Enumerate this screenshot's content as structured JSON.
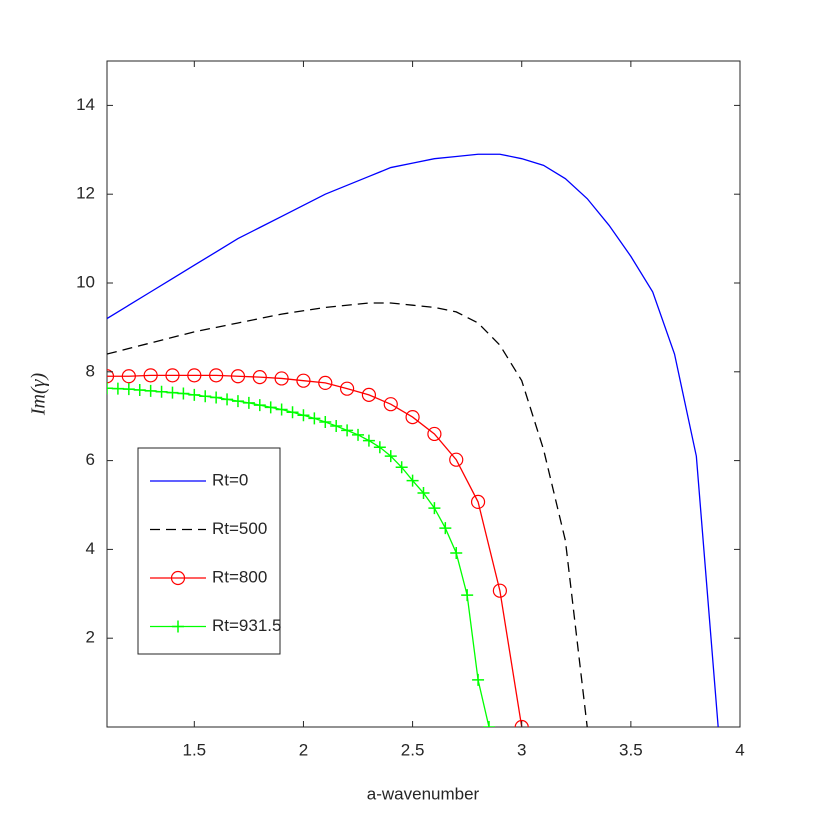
{
  "chart_data": {
    "type": "line",
    "xlabel": "a-wavenumber",
    "ylabel": "Im(γ)",
    "xlim": [
      1.1,
      4
    ],
    "ylim": [
      0,
      15
    ],
    "xticks": [
      1.5,
      2,
      2.5,
      3,
      3.5,
      4
    ],
    "yticks": [
      2,
      4,
      6,
      8,
      10,
      12,
      14
    ],
    "grid": false,
    "legend": "lower left",
    "series": [
      {
        "name": "Rt=0",
        "color": "#0000ff",
        "dash": false,
        "marker": "none",
        "x": [
          1.1,
          1.2,
          1.3,
          1.4,
          1.5,
          1.6,
          1.7,
          1.8,
          1.9,
          2.0,
          2.1,
          2.2,
          2.3,
          2.4,
          2.5,
          2.6,
          2.7,
          2.8,
          2.9,
          3.0,
          3.1,
          3.2,
          3.3,
          3.4,
          3.5,
          3.6,
          3.7,
          3.8,
          3.9
        ],
        "values": [
          9.2,
          9.5,
          9.8,
          10.1,
          10.4,
          10.7,
          11.0,
          11.25,
          11.5,
          11.75,
          12.0,
          12.2,
          12.4,
          12.6,
          12.7,
          12.8,
          12.85,
          12.9,
          12.9,
          12.8,
          12.65,
          12.35,
          11.9,
          11.3,
          10.6,
          9.8,
          8.4,
          6.1,
          0
        ]
      },
      {
        "name": "Rt=500",
        "color": "#000000",
        "dash": true,
        "marker": "none",
        "x": [
          1.1,
          1.3,
          1.5,
          1.7,
          1.9,
          2.1,
          2.3,
          2.4,
          2.5,
          2.6,
          2.7,
          2.8,
          2.9,
          3.0,
          3.1,
          3.2,
          3.3
        ],
        "values": [
          8.4,
          8.65,
          8.9,
          9.1,
          9.3,
          9.45,
          9.55,
          9.55,
          9.5,
          9.45,
          9.35,
          9.1,
          8.6,
          7.8,
          6.25,
          4.2,
          0
        ]
      },
      {
        "name": "Rt=800",
        "color": "#ff0000",
        "dash": false,
        "marker": "o",
        "x": [
          1.1,
          1.2,
          1.3,
          1.4,
          1.5,
          1.6,
          1.7,
          1.8,
          1.9,
          2.0,
          2.1,
          2.2,
          2.3,
          2.4,
          2.5,
          2.6,
          2.7,
          2.8,
          2.9,
          3.0
        ],
        "values": [
          7.9,
          7.9,
          7.92,
          7.92,
          7.92,
          7.92,
          7.9,
          7.88,
          7.85,
          7.8,
          7.75,
          7.62,
          7.48,
          7.27,
          6.98,
          6.6,
          6.02,
          5.07,
          3.07,
          0
        ]
      },
      {
        "name": "Rt=931.5",
        "color": "#00ff00",
        "dash": false,
        "marker": "+",
        "x": [
          1.1,
          1.15,
          1.2,
          1.25,
          1.3,
          1.35,
          1.4,
          1.45,
          1.5,
          1.55,
          1.6,
          1.65,
          1.7,
          1.75,
          1.8,
          1.85,
          1.9,
          1.95,
          2.0,
          2.05,
          2.1,
          2.15,
          2.2,
          2.25,
          2.3,
          2.35,
          2.4,
          2.45,
          2.5,
          2.55,
          2.6,
          2.65,
          2.7,
          2.75,
          2.8,
          2.85
        ],
        "values": [
          7.63,
          7.62,
          7.61,
          7.59,
          7.57,
          7.55,
          7.53,
          7.51,
          7.48,
          7.45,
          7.42,
          7.38,
          7.34,
          7.3,
          7.25,
          7.2,
          7.15,
          7.09,
          7.02,
          6.95,
          6.87,
          6.78,
          6.68,
          6.58,
          6.45,
          6.3,
          6.1,
          5.85,
          5.55,
          5.27,
          4.93,
          4.48,
          3.92,
          2.97,
          1.06,
          0
        ]
      }
    ]
  }
}
